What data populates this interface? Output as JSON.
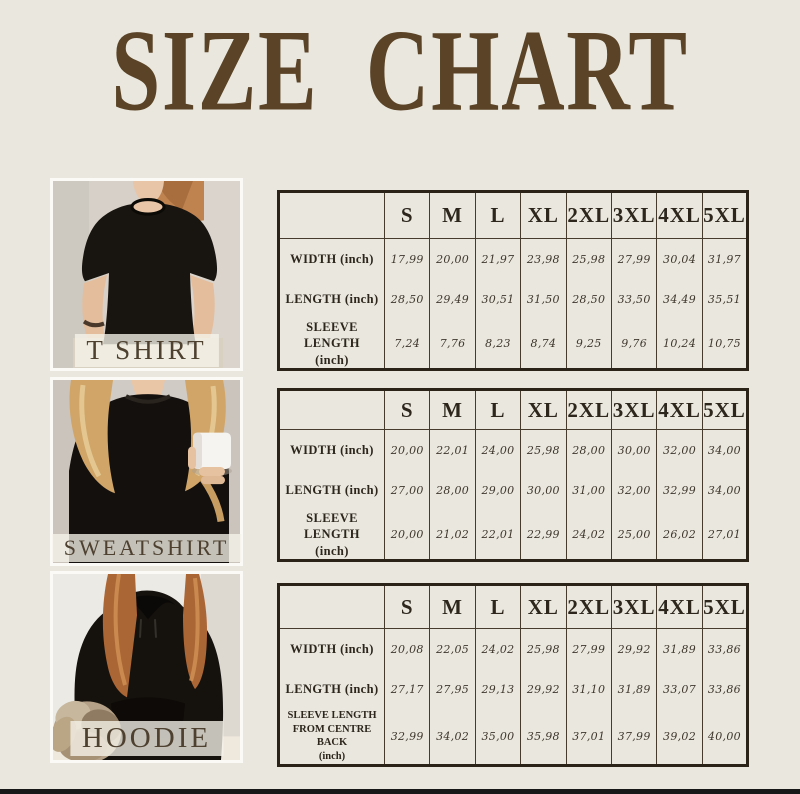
{
  "title": "SIZE CHART",
  "colors": {
    "background": "#eae7de",
    "title_text": "#5a4326",
    "table_line": "#2b2318",
    "row_label_text": "#2c261d",
    "value_text": "#3e372e",
    "photo_label_text": "#4e4130",
    "photo_label_bg": "#f6f3eb",
    "garment_black": "#15110d"
  },
  "chart_data": [
    {
      "type": "table",
      "product": "T SHIRT",
      "photo_name": "woman-in-black-t-shirt",
      "columns": [
        "S",
        "M",
        "L",
        "XL",
        "2XL",
        "3XL",
        "4XL",
        "5XL"
      ],
      "rows": [
        {
          "label_lines": [
            "WIDTH (inch)"
          ],
          "values": [
            "17,99",
            "20,00",
            "21,97",
            "23,98",
            "25,98",
            "27,99",
            "30,04",
            "31,97"
          ]
        },
        {
          "label_lines": [
            "LENGTH (inch)"
          ],
          "values": [
            "28,50",
            "29,49",
            "30,51",
            "31,50",
            "28,50",
            "33,50",
            "34,49",
            "35,51"
          ]
        },
        {
          "label_lines": [
            "SLEEVE LENGTH",
            "(inch)"
          ],
          "values": [
            "7,24",
            "7,76",
            "8,23",
            "8,74",
            "9,25",
            "9,76",
            "10,24",
            "10,75"
          ]
        }
      ]
    },
    {
      "type": "table",
      "product": "SWEATSHIRT",
      "photo_name": "woman-in-black-sweatshirt-holding-mug",
      "columns": [
        "S",
        "M",
        "L",
        "XL",
        "2XL",
        "3XL",
        "4XL",
        "5XL"
      ],
      "rows": [
        {
          "label_lines": [
            "WIDTH (inch)"
          ],
          "values": [
            "20,00",
            "22,01",
            "24,00",
            "25,98",
            "28,00",
            "30,00",
            "32,00",
            "34,00"
          ]
        },
        {
          "label_lines": [
            "LENGTH (inch)"
          ],
          "values": [
            "27,00",
            "28,00",
            "29,00",
            "30,00",
            "31,00",
            "32,00",
            "32,99",
            "34,00"
          ]
        },
        {
          "label_lines": [
            "SLEEVE LENGTH",
            "(inch)"
          ],
          "values": [
            "20,00",
            "21,02",
            "22,01",
            "22,99",
            "24,02",
            "25,00",
            "26,02",
            "27,01"
          ]
        }
      ]
    },
    {
      "type": "table",
      "product": "HOODIE",
      "photo_name": "woman-in-black-hoodie-with-dog",
      "columns": [
        "S",
        "M",
        "L",
        "XL",
        "2XL",
        "3XL",
        "4XL",
        "5XL"
      ],
      "rows": [
        {
          "label_lines": [
            "WIDTH (inch)"
          ],
          "values": [
            "20,08",
            "22,05",
            "24,02",
            "25,98",
            "27,99",
            "29,92",
            "31,89",
            "33,86"
          ]
        },
        {
          "label_lines": [
            "LENGTH (inch)"
          ],
          "values": [
            "27,17",
            "27,95",
            "29,13",
            "29,92",
            "31,10",
            "31,89",
            "33,07",
            "33,86"
          ]
        },
        {
          "label_lines": [
            "SLEEVE LENGTH",
            "FROM CENTRE BACK",
            "(inch)"
          ],
          "values": [
            "32,99",
            "34,02",
            "35,00",
            "35,98",
            "37,01",
            "37,99",
            "39,02",
            "40,00"
          ]
        }
      ]
    }
  ]
}
